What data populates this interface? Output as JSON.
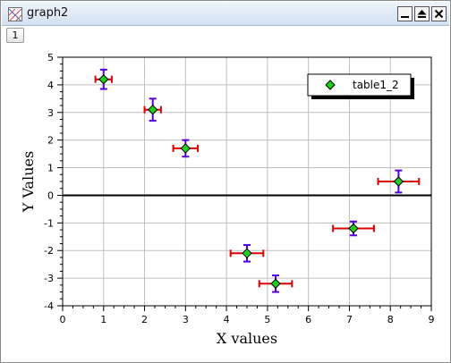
{
  "window": {
    "title": "graph2",
    "layer_tab": "1",
    "controls": [
      "minimize-icon",
      "restore-icon",
      "close-icon"
    ]
  },
  "chart_data": {
    "type": "scatter",
    "title": "",
    "xlabel": "X values",
    "ylabel": "Y Values",
    "xlim": [
      0,
      9
    ],
    "ylim": [
      -4,
      5
    ],
    "xticks": [
      0,
      1,
      2,
      3,
      4,
      5,
      6,
      7,
      8,
      9
    ],
    "yticks": [
      -4,
      -3,
      -2,
      -1,
      0,
      1,
      2,
      3,
      4,
      5
    ],
    "grid": true,
    "zero_line": true,
    "legend": {
      "position": "top-right",
      "entries": [
        "table1_2"
      ]
    },
    "colors": {
      "marker": "#22cc22",
      "x_error": "#dd0000",
      "y_error": "#5500dd",
      "grid": "#c0c0c0"
    },
    "series": [
      {
        "name": "table1_2",
        "marker": "diamond",
        "points": [
          {
            "x": 1.0,
            "y": 4.2,
            "xerr": 0.2,
            "yerr": 0.35
          },
          {
            "x": 2.2,
            "y": 3.1,
            "xerr": 0.2,
            "yerr": 0.4
          },
          {
            "x": 3.0,
            "y": 1.7,
            "xerr": 0.3,
            "yerr": 0.3
          },
          {
            "x": 4.5,
            "y": -2.1,
            "xerr": 0.4,
            "yerr": 0.3
          },
          {
            "x": 5.2,
            "y": -3.2,
            "xerr": 0.4,
            "yerr": 0.3
          },
          {
            "x": 7.1,
            "y": -1.2,
            "xerr": 0.5,
            "yerr": 0.25
          },
          {
            "x": 8.2,
            "y": 0.5,
            "xerr": 0.5,
            "yerr": 0.4
          }
        ]
      }
    ]
  }
}
